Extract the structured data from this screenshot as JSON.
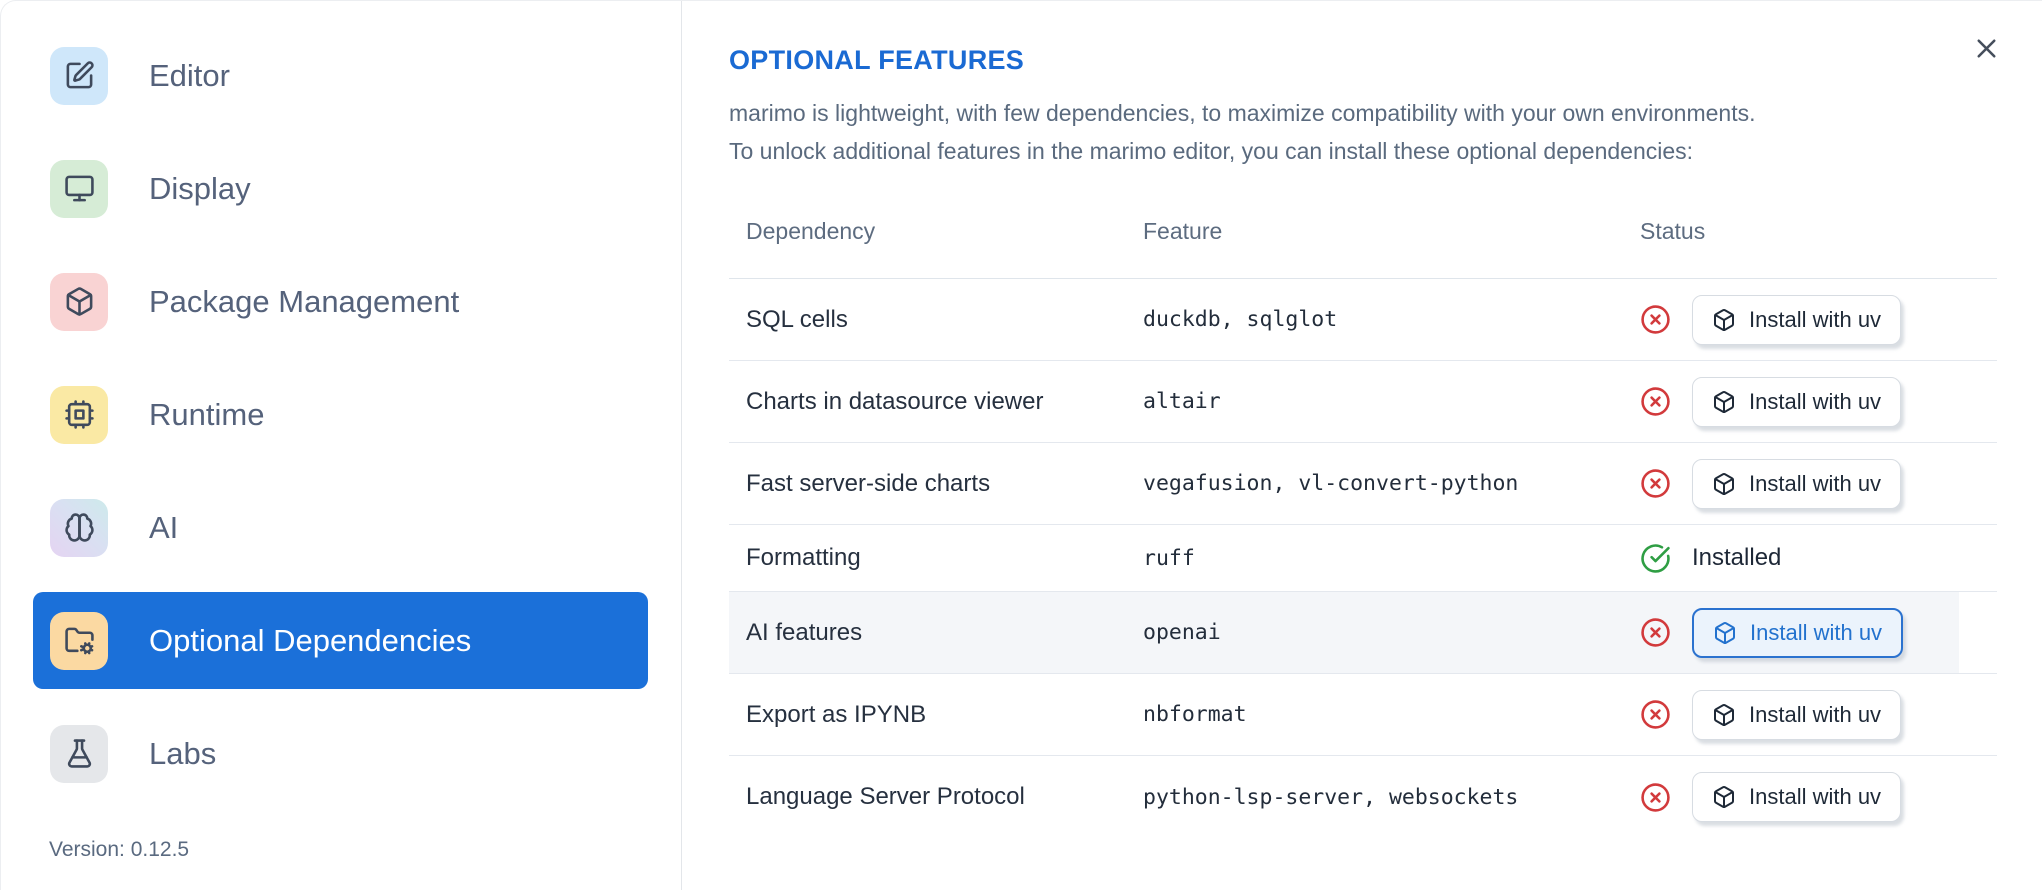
{
  "colors": {
    "accent": "#1b70d9",
    "title_blue": "#1a6ad3",
    "status_missing_red": "#d23a3c",
    "status_installed_green": "#2f9e44",
    "highlight_row_bg": "#f4f6f9"
  },
  "sidebar": {
    "items": [
      {
        "label": "Editor",
        "slug": "editor",
        "icon": "square-pen",
        "icon_bg": "#cfe7fa",
        "selected": false
      },
      {
        "label": "Display",
        "slug": "display",
        "icon": "monitor",
        "icon_bg": "#d6ecd6",
        "selected": false
      },
      {
        "label": "Package Management",
        "slug": "package-management",
        "icon": "package",
        "icon_bg": "#f9d3d3",
        "selected": false
      },
      {
        "label": "Runtime",
        "slug": "runtime",
        "icon": "cpu",
        "icon_bg": "#fae9a4",
        "selected": false
      },
      {
        "label": "AI",
        "slug": "ai",
        "icon": "brain",
        "icon_bg": "linear-gradient(45deg, #e5d4f2 0%, #d9e0f2 55%, #cdeaeb 100%)",
        "selected": false
      },
      {
        "label": "Optional Dependencies",
        "slug": "optional-dependencies",
        "icon": "folder-cog",
        "icon_bg": "#fbd9a2",
        "selected": true
      },
      {
        "label": "Labs",
        "slug": "labs",
        "icon": "flask",
        "icon_bg": "#e5e7ea",
        "selected": false
      }
    ],
    "version_label": "Version: 0.12.5"
  },
  "panel": {
    "title": "OPTIONAL FEATURES",
    "description_line1": "marimo is lightweight, with few dependencies, to maximize compatibility with your own environments.",
    "description_line2": "To unlock additional features in the marimo editor, you can install these optional dependencies:",
    "table": {
      "headers": [
        "Dependency",
        "Feature",
        "Status"
      ],
      "rows": [
        {
          "dependency": "SQL cells",
          "feature": "duckdb, sqlglot",
          "status": "missing",
          "action_label": "Install with uv",
          "highlighted": false
        },
        {
          "dependency": "Charts in datasource viewer",
          "feature": "altair",
          "status": "missing",
          "action_label": "Install with uv",
          "highlighted": false
        },
        {
          "dependency": "Fast server-side charts",
          "feature": "vegafusion, vl-convert-python",
          "status": "missing",
          "action_label": "Install with uv",
          "highlighted": false
        },
        {
          "dependency": "Formatting",
          "feature": "ruff",
          "status": "installed",
          "status_label": "Installed",
          "highlighted": false
        },
        {
          "dependency": "AI features",
          "feature": "openai",
          "status": "missing",
          "action_label": "Install with uv",
          "highlighted": true
        },
        {
          "dependency": "Export as IPYNB",
          "feature": "nbformat",
          "status": "missing",
          "action_label": "Install with uv",
          "highlighted": false
        },
        {
          "dependency": "Language Server Protocol",
          "feature": "python-lsp-server, websockets",
          "status": "missing",
          "action_label": "Install with uv",
          "highlighted": false
        }
      ]
    }
  }
}
